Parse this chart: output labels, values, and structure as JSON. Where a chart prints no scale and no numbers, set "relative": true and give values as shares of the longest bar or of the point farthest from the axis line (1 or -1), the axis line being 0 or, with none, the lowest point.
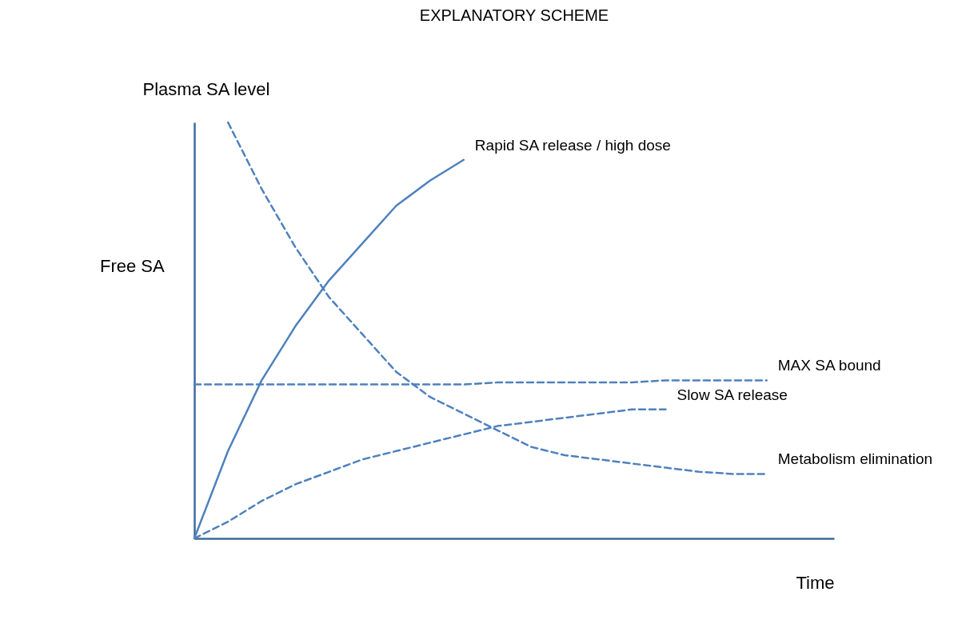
{
  "chart_data": {
    "type": "line",
    "title": "EXPLANATORY SCHEME",
    "xlabel": "Time",
    "ylabel": "Plasma SA level",
    "relative": true,
    "marker": "none",
    "grid": false,
    "annotations": [
      "Free SA"
    ],
    "categories": [
      null,
      null,
      null,
      null,
      null,
      null,
      null,
      null,
      null,
      null,
      null,
      null,
      null,
      null,
      null,
      null,
      null,
      null,
      null,
      null
    ],
    "series": [
      {
        "name": "Rapid SA release / high dose",
        "color": "#4f81bd",
        "line_style": "solid",
        "values": [
          0,
          0.21,
          0.38,
          0.51,
          0.62,
          0.71,
          0.8,
          0.86,
          0.91,
          null,
          null,
          null,
          null,
          null,
          null,
          null,
          null,
          null,
          null,
          null
        ]
      },
      {
        "name": "Metabolism elimination",
        "color": "#4f81bd",
        "line_style": "dashed",
        "values": [
          null,
          1,
          0.84,
          0.7,
          0.58,
          0.49,
          0.4,
          0.34,
          0.3,
          0.26,
          0.22,
          0.2,
          0.19,
          0.18,
          0.17,
          0.16,
          0.155,
          0.155,
          null,
          null
        ]
      },
      {
        "name": "Slow SA release",
        "color": "#4f81bd",
        "line_style": "dashed",
        "values": [
          0,
          0.04,
          0.09,
          0.13,
          0.16,
          0.19,
          0.21,
          0.23,
          0.25,
          0.27,
          0.28,
          0.29,
          0.3,
          0.31,
          0.31,
          null,
          null,
          null,
          null,
          null
        ]
      },
      {
        "name": "MAX SA bound",
        "color": "#4f81bd",
        "line_style": "dashed",
        "values": [
          0.37,
          0.37,
          0.37,
          0.37,
          0.37,
          0.37,
          0.37,
          0.37,
          0.37,
          0.375,
          0.375,
          0.375,
          0.375,
          0.375,
          0.38,
          0.38,
          0.38,
          0.38,
          null,
          null
        ]
      }
    ]
  }
}
